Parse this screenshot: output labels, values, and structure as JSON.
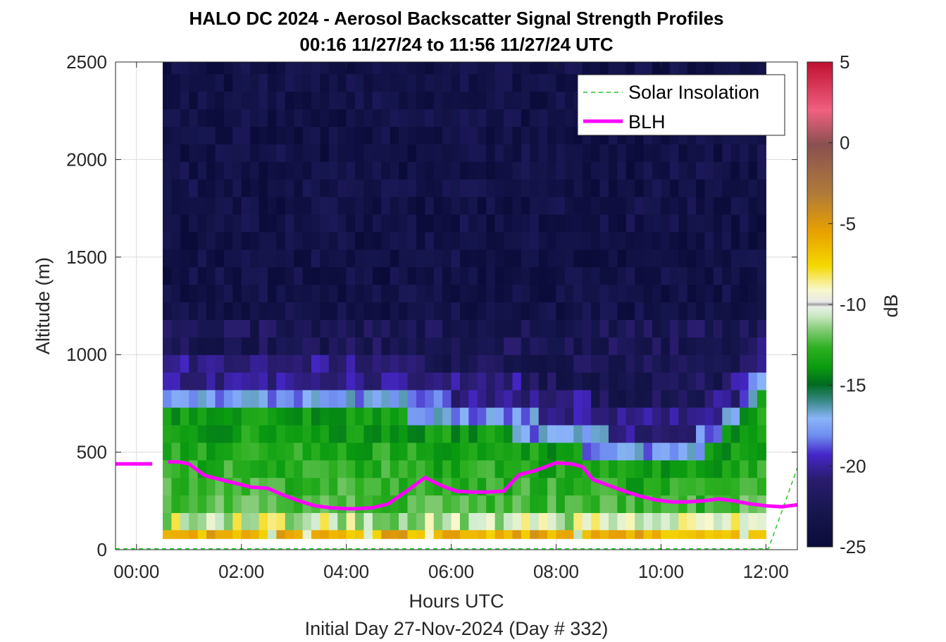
{
  "chart_data": {
    "type": "heatmap",
    "title": "HALO DC 2024 - Aerosol Backscatter Signal Strength Profiles",
    "subtitle": "00:16 11/27/24 to 11:56 11/27/24  UTC",
    "xlabel": "Hours UTC",
    "xlabel2": "Initial Day 27-Nov-2024 (Day # 332)",
    "ylabel": "Altitude (m)",
    "xlim": [
      -0.4,
      12.6
    ],
    "ylim": [
      0,
      2500
    ],
    "x_ticks": [
      0,
      2,
      4,
      6,
      8,
      10,
      12
    ],
    "x_tick_labels": [
      "00:00",
      "02:00",
      "04:00",
      "06:00",
      "08:00",
      "10:00",
      "12:00"
    ],
    "y_ticks": [
      0,
      500,
      1000,
      1500,
      2000,
      2500
    ],
    "y_tick_labels": [
      "0",
      "500",
      "1000",
      "1500",
      "2000",
      "2500"
    ],
    "grid": true,
    "legend_position": "top-right",
    "colorbar": {
      "label": "dB",
      "range": [
        -25,
        5
      ],
      "ticks": [
        5,
        0,
        -5,
        -10,
        -15,
        -20,
        -25
      ],
      "tick_labels": [
        "5",
        "0",
        "-5",
        "-10",
        "-15",
        "-20",
        "-25"
      ]
    },
    "heatmap_extent": {
      "x_start": 0.5,
      "x_end": 12.0,
      "y_start": 100,
      "y_end": 2500
    },
    "series": [
      {
        "name": "Solar Insolation",
        "style": "dashed",
        "color": "#22cc22",
        "x": [
          -0.4,
          12.05,
          12.6
        ],
        "y": [
          5,
          5,
          420
        ]
      },
      {
        "name": "BLH",
        "style": "solid",
        "color": "#ff00ff",
        "segments": [
          {
            "x": [
              -0.4,
              0.3
            ],
            "y": [
              440,
              440
            ]
          },
          {
            "x": [
              0.6,
              0.8,
              1.0,
              1.3,
              1.6,
              1.9,
              2.2,
              2.5,
              2.8,
              3.1,
              3.4,
              3.7,
              4.0,
              4.2,
              4.5,
              4.8,
              5.2,
              5.5,
              5.8,
              6.1,
              6.4,
              6.7,
              7.0,
              7.3,
              7.6,
              8.0,
              8.3,
              8.5,
              8.7,
              9.0,
              9.3,
              9.6,
              9.9,
              10.2,
              10.5,
              10.8,
              11.1,
              11.4,
              11.7,
              12.0,
              12.3,
              12.6
            ],
            "y": [
              450,
              450,
              440,
              380,
              360,
              340,
              320,
              315,
              280,
              250,
              225,
              215,
              210,
              210,
              215,
              235,
              310,
              370,
              330,
              300,
              295,
              295,
              300,
              385,
              405,
              445,
              440,
              425,
              360,
              330,
              300,
              275,
              255,
              245,
              245,
              250,
              260,
              250,
              235,
              225,
              220,
              230
            ]
          }
        ]
      }
    ]
  }
}
